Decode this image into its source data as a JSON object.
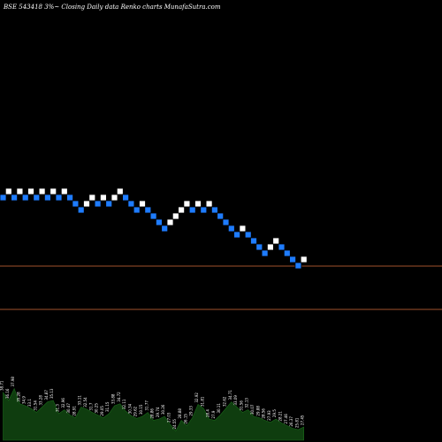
{
  "chart_data": {
    "type": "renko",
    "title": "BSE 543418  3%~  Closing Daily data  Renko  charts MunafaSutra.com",
    "colors": {
      "background": "#000000",
      "up_brick": "#ffffff",
      "down_brick": "#1e7cff",
      "level_line": "#a0522d",
      "volume_fill": "#0f3d0f",
      "volume_text": "#ffffff"
    },
    "levels": [
      11,
      18
    ],
    "bricks": [
      {
        "dir": "down",
        "y": 0
      },
      {
        "dir": "up",
        "y": 1
      },
      {
        "dir": "down",
        "y": 0
      },
      {
        "dir": "up",
        "y": 1
      },
      {
        "dir": "down",
        "y": 0
      },
      {
        "dir": "up",
        "y": 1
      },
      {
        "dir": "down",
        "y": 0
      },
      {
        "dir": "up",
        "y": 1
      },
      {
        "dir": "down",
        "y": 0
      },
      {
        "dir": "up",
        "y": 1
      },
      {
        "dir": "down",
        "y": 0
      },
      {
        "dir": "up",
        "y": 1
      },
      {
        "dir": "down",
        "y": 0
      },
      {
        "dir": "down",
        "y": -1
      },
      {
        "dir": "down",
        "y": -2
      },
      {
        "dir": "up",
        "y": -1
      },
      {
        "dir": "up",
        "y": 0
      },
      {
        "dir": "down",
        "y": -1
      },
      {
        "dir": "up",
        "y": 0
      },
      {
        "dir": "down",
        "y": -1
      },
      {
        "dir": "up",
        "y": 0
      },
      {
        "dir": "up",
        "y": 1
      },
      {
        "dir": "down",
        "y": 0
      },
      {
        "dir": "down",
        "y": -1
      },
      {
        "dir": "down",
        "y": -2
      },
      {
        "dir": "up",
        "y": -1
      },
      {
        "dir": "down",
        "y": -2
      },
      {
        "dir": "down",
        "y": -3
      },
      {
        "dir": "down",
        "y": -4
      },
      {
        "dir": "down",
        "y": -5
      },
      {
        "dir": "up",
        "y": -4
      },
      {
        "dir": "up",
        "y": -3
      },
      {
        "dir": "up",
        "y": -2
      },
      {
        "dir": "up",
        "y": -1
      },
      {
        "dir": "down",
        "y": -2
      },
      {
        "dir": "up",
        "y": -1
      },
      {
        "dir": "down",
        "y": -2
      },
      {
        "dir": "up",
        "y": -1
      },
      {
        "dir": "down",
        "y": -2
      },
      {
        "dir": "down",
        "y": -3
      },
      {
        "dir": "down",
        "y": -4
      },
      {
        "dir": "down",
        "y": -5
      },
      {
        "dir": "down",
        "y": -6
      },
      {
        "dir": "up",
        "y": -5
      },
      {
        "dir": "down",
        "y": -6
      },
      {
        "dir": "down",
        "y": -7
      },
      {
        "dir": "down",
        "y": -8
      },
      {
        "dir": "down",
        "y": -9
      },
      {
        "dir": "up",
        "y": -8
      },
      {
        "dir": "up",
        "y": -7
      },
      {
        "dir": "down",
        "y": -8
      },
      {
        "dir": "down",
        "y": -9
      },
      {
        "dir": "down",
        "y": -10
      },
      {
        "dir": "down",
        "y": -11
      },
      {
        "dir": "up",
        "y": -10
      }
    ],
    "volume": {
      "labels": [
        "38.71",
        "36.16",
        "37.98",
        "35.28",
        "34.9",
        "33.1",
        "31.54",
        "33.28",
        "34.87",
        "35.13",
        "31.3",
        "32.96",
        "30.47",
        "28.91",
        "33.11",
        "32.54",
        "31.7",
        "30.25",
        "29.05",
        "31.15",
        "33.88",
        "34.72",
        "32.11",
        "30.34",
        "29.62",
        "30.15",
        "31.77",
        "28.86",
        "29.74",
        "30.26",
        "27.03",
        "24.55",
        "28.88",
        "26.15",
        "29.33",
        "32.92",
        "31.81",
        "28.4",
        "27.9",
        "30.11",
        "32.62",
        "34.71",
        "33.09",
        "31.56",
        "32.13",
        "30.07",
        "29.88",
        "28.56",
        "27.93",
        "29.5",
        "28.21",
        "27.46",
        "26.37",
        "25.81",
        "27.45"
      ],
      "values": [
        72,
        60,
        78,
        55,
        52,
        48,
        42,
        50,
        58,
        60,
        40,
        46,
        38,
        34,
        50,
        47,
        42,
        38,
        34,
        40,
        52,
        55,
        44,
        37,
        33,
        36,
        42,
        30,
        32,
        36,
        24,
        14,
        30,
        22,
        34,
        54,
        48,
        32,
        30,
        38,
        48,
        58,
        50,
        42,
        46,
        36,
        34,
        30,
        27,
        32,
        26,
        22,
        18,
        16,
        20
      ]
    }
  }
}
